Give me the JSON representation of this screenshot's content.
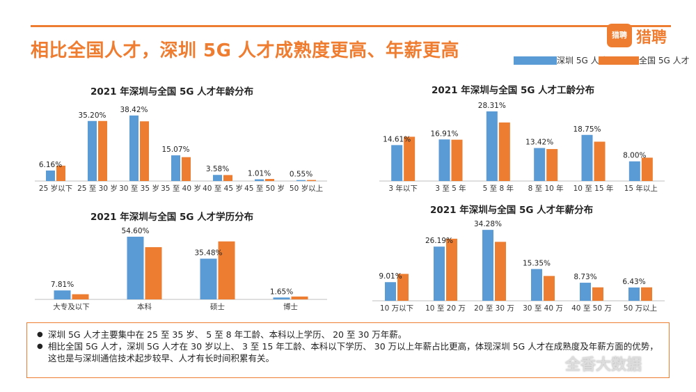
{
  "page": {
    "title": "相比全国人才，深圳 5G 人才成熟度更高、年薪更高",
    "logo_badge": "猎聘",
    "logo_text": "猎聘",
    "watermark": "全香大数据"
  },
  "colors": {
    "accent": "#ef7d31",
    "shenzhen": "#5b9bd5",
    "national": "#ed7d31"
  },
  "legend": {
    "shenzhen": "深圳 5G 人才",
    "national": "全国 5G 人才"
  },
  "chart_data": [
    {
      "type": "bar",
      "title": "2021 年深圳与全国 5G 人才年龄分布",
      "categories": [
        "25 岁以下",
        "25 至 30 岁",
        "30 至 35 岁",
        "35 至 40 岁",
        "40 至 45 岁",
        "45 至 50 岁",
        "50 岁以上"
      ],
      "series": [
        {
          "name": "深圳 5G 人才",
          "values": [
            6.16,
            35.2,
            38.42,
            15.07,
            3.58,
            1.01,
            0.55
          ]
        },
        {
          "name": "全国 5G 人才",
          "values": [
            9.0,
            35.2,
            35.0,
            14.0,
            3.5,
            1.2,
            0.6
          ]
        }
      ],
      "labels": [
        "6.16%",
        "35.20%",
        "38.42%",
        "15.07%",
        "3.58%",
        "1.01%",
        "0.55%"
      ],
      "ylim": [
        0,
        40
      ]
    },
    {
      "type": "bar",
      "title": "2021 年深圳与全国 5G 人才工龄分布",
      "categories": [
        "3 年以下",
        "3 至 5 年",
        "5 至 8 年",
        "8 至 10 年",
        "10 至 15 年",
        "15 年以上"
      ],
      "series": [
        {
          "name": "深圳 5G 人才",
          "values": [
            14.61,
            16.91,
            28.31,
            13.42,
            18.75,
            8.0
          ]
        },
        {
          "name": "全国 5G 人才",
          "values": [
            18.0,
            16.8,
            23.8,
            13.0,
            16.0,
            9.5
          ]
        }
      ],
      "labels": [
        "14.61%",
        "16.91%",
        "28.31%",
        "13.42%",
        "18.75%",
        "8.00%"
      ],
      "ylim": [
        0,
        30
      ]
    },
    {
      "type": "bar",
      "title": "2021 年深圳与全国 5G 人才学历分布",
      "categories": [
        "大专及以下",
        "本科",
        "硕士",
        "博士"
      ],
      "series": [
        {
          "name": "深圳 5G 人才",
          "values": [
            7.81,
            54.6,
            35.48,
            1.65
          ]
        },
        {
          "name": "全国 5G 人才",
          "values": [
            4.5,
            45.5,
            50.5,
            2.5
          ]
        }
      ],
      "labels": [
        "7.81%",
        "54.60%",
        "35.48%",
        "1.65%"
      ],
      "ylim": [
        0,
        57
      ]
    },
    {
      "type": "bar",
      "title": "2021 年深圳与全国 5G 人才年薪分布",
      "categories": [
        "10 万以下",
        "10 至 20 万",
        "20 至 30 万",
        "30 至 40 万",
        "40 至 50 万",
        "50 万以上"
      ],
      "series": [
        {
          "name": "深圳 5G 人才",
          "values": [
            9.01,
            26.19,
            34.28,
            15.35,
            8.73,
            6.43
          ]
        },
        {
          "name": "全国 5G 人才",
          "values": [
            13.0,
            30.0,
            28.5,
            12.0,
            6.5,
            6.5
          ]
        }
      ],
      "labels": [
        "9.01%",
        "26.19%",
        "34.28%",
        "15.35%",
        "8.73%",
        "6.43%"
      ],
      "ylim": [
        0,
        35
      ]
    }
  ],
  "notes": [
    "深圳 5G 人才主要集中在 25 至 35 岁、 5 至 8 年工龄、本科以上学历、 20 至 30 万年薪。",
    "相比全国 5G 人才，深圳 5G 人才在 30 岁以上、 3 至 15 年工龄、本科以下学历、 30 万以上年薪占比更高，体现深圳 5G 人才在成熟度及年薪方面的优势，这也是与深圳通信技术起步较早、人才有长时间积累有关。"
  ]
}
